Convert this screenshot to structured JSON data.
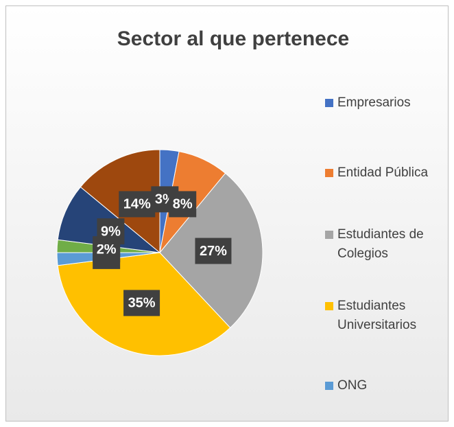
{
  "chart_data": {
    "type": "pie",
    "title": "Sector al que pertenece",
    "categories": [
      "Empresarios",
      "Entidad Pública",
      "Estudiantes de Colegios",
      "Estudiantes Universitarios",
      "ONG",
      null,
      null,
      null
    ],
    "legend_labels": [
      [
        "Empresarios"
      ],
      [
        "Entidad Pública"
      ],
      [
        "Estudiantes de",
        "Colegios"
      ],
      [
        "Estudiantes",
        "Universitarios"
      ],
      [
        "ONG"
      ]
    ],
    "values": [
      3,
      8,
      27,
      35,
      2,
      2,
      9,
      14
    ],
    "value_labels": [
      "3%",
      "8%",
      "27%",
      "35%",
      "2%",
      "2%",
      "9%",
      "14%"
    ],
    "colors": [
      "#4472c4",
      "#ed7d31",
      "#a5a5a5",
      "#ffc000",
      "#5b9bd5",
      "#70ad47",
      "#264478",
      "#9e480e"
    ],
    "legend": "right"
  }
}
